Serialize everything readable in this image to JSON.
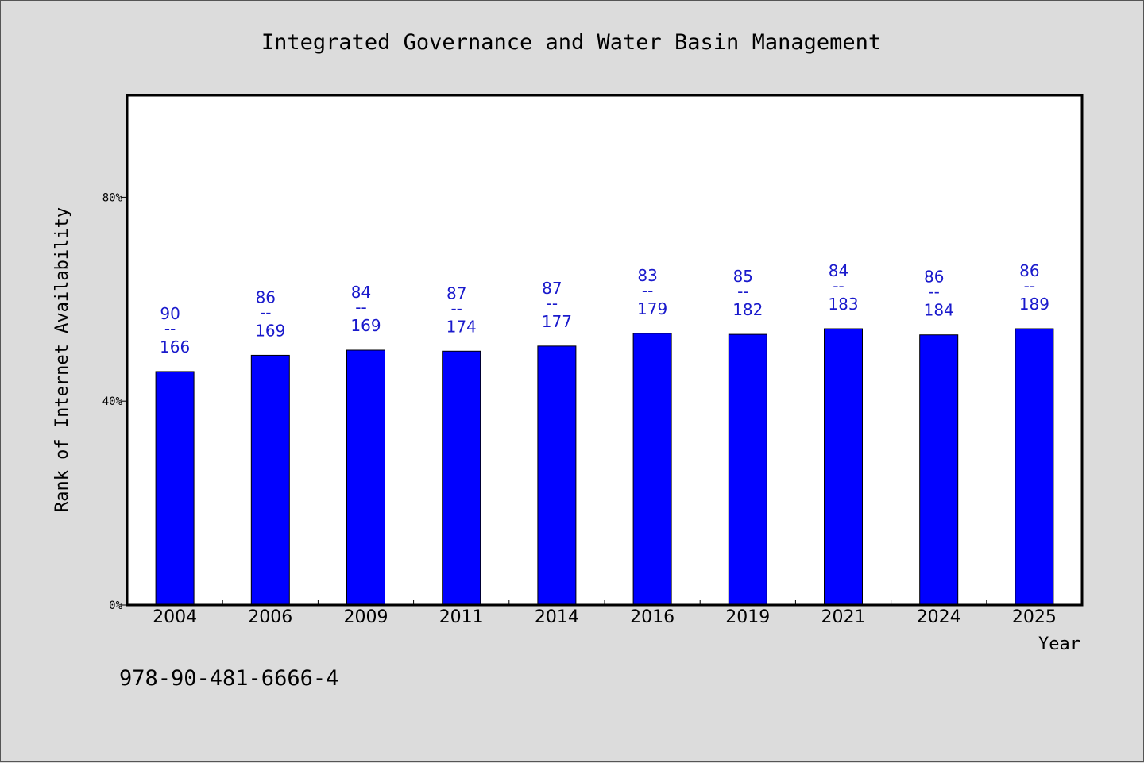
{
  "chart_data": {
    "type": "bar",
    "title": "Integrated Governance and Water Basin Management",
    "xlabel": "Year",
    "ylabel": "Rank of Internet Availability",
    "categories": [
      "2004",
      "2006",
      "2009",
      "2011",
      "2014",
      "2016",
      "2019",
      "2021",
      "2024",
      "2025"
    ],
    "values": [
      45.8,
      49.0,
      50.0,
      49.8,
      50.8,
      53.3,
      53.1,
      54.2,
      53.0,
      54.2
    ],
    "rank": [
      90,
      86,
      84,
      87,
      87,
      83,
      85,
      84,
      86,
      86
    ],
    "total": [
      166,
      169,
      169,
      174,
      177,
      179,
      182,
      183,
      184,
      189
    ],
    "label_separator": "--",
    "ylim": [
      0,
      100
    ],
    "yticks": [
      0,
      40,
      80
    ],
    "ytick_labels": [
      "0%",
      "40%",
      "80%"
    ],
    "bar_color": "#0000ff",
    "label_color": "#1a1acc",
    "grid": false,
    "legend": "none"
  },
  "footer": {
    "isbn": "978-90-481-6666-4"
  }
}
